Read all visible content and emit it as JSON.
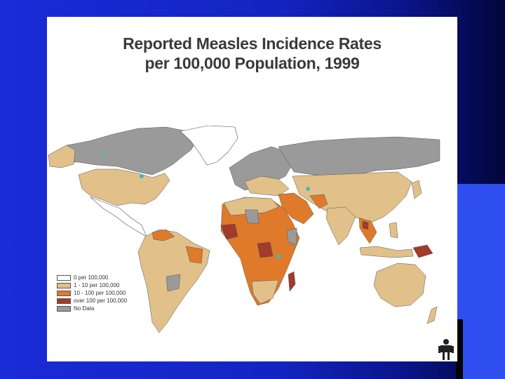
{
  "title_line1": "Reported Measles Incidence Rates",
  "title_line2": "per 100,000 Population, 1999",
  "legend": [
    {
      "label": "0 per 100,000",
      "color": "#ffffff"
    },
    {
      "label": "1 - 10 per 100,000",
      "color": "#e2c08a"
    },
    {
      "label": "10 - 100 per 100,000",
      "color": "#de7a2a"
    },
    {
      "label": "over 100 per 100,000",
      "color": "#a33a2c"
    },
    {
      "label": "No Data",
      "color": "#9a9a9a"
    }
  ],
  "colors": {
    "background": "#1424c2",
    "slide": "#ffffff",
    "low": "#e2c08a",
    "medium": "#de7a2a",
    "high": "#a33a2c",
    "nodata": "#9a9a9a",
    "lakes": "#3fb8c8"
  }
}
